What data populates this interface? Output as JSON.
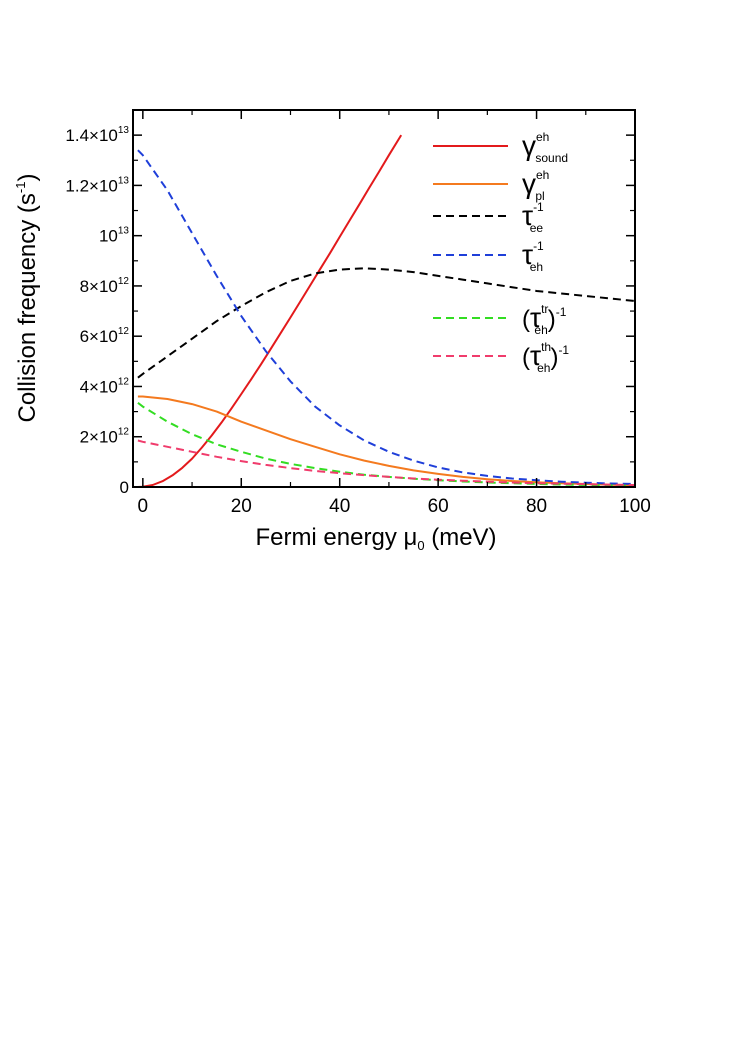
{
  "chart_data": {
    "type": "line",
    "xlabel_main": "Fermi energy μ",
    "xlabel_sub": "0",
    "xlabel_tail": " (meV)",
    "ylabel_main": "Collision frequency (s",
    "ylabel_sup": "-1",
    "ylabel_tail": ")",
    "xlim": [
      -2,
      100
    ],
    "ylim": [
      0,
      15000000000000.0
    ],
    "xticks": [
      0,
      20,
      40,
      60,
      80,
      100
    ],
    "xtick_labels": [
      "0",
      "20",
      "40",
      "60",
      "80",
      "100"
    ],
    "yticks": [
      0,
      2000000000000.0,
      4000000000000.0,
      6000000000000.0,
      8000000000000.0,
      10000000000000.0,
      12000000000000.0,
      14000000000000.0
    ],
    "ytick_labels": [
      {
        "base": "0",
        "exp": ""
      },
      {
        "base": "2×10",
        "exp": "12"
      },
      {
        "base": "4×10",
        "exp": "12"
      },
      {
        "base": "6×10",
        "exp": "12"
      },
      {
        "base": "8×10",
        "exp": "12"
      },
      {
        "base": "10",
        "exp": "13"
      },
      {
        "base": "1.2×10",
        "exp": "13"
      },
      {
        "base": "1.4×10",
        "exp": "13"
      }
    ],
    "series": [
      {
        "name": "gamma_sound",
        "color": "#e31a1c",
        "dash": "solid",
        "label": {
          "pre": "",
          "sym": "γ",
          "sup": "eh",
          "sub": "sound",
          "post": "",
          "post_sup": ""
        },
        "x": [
          -1,
          0,
          2,
          4,
          6,
          8,
          10,
          12,
          14,
          16,
          18,
          20,
          22,
          24,
          26,
          28,
          30,
          32,
          34,
          36,
          38,
          40,
          42,
          44,
          46,
          48,
          50,
          52.5
        ],
        "y": [
          0,
          10000000000.0,
          80000000000.0,
          230000000000.0,
          460000000000.0,
          760000000000.0,
          1130000000000.0,
          1570000000000.0,
          2050000000000.0,
          2570000000000.0,
          3120000000000.0,
          3700000000000.0,
          4280000000000.0,
          4880000000000.0,
          5500000000000.0,
          6120000000000.0,
          6750000000000.0,
          7380000000000.0,
          8020000000000.0,
          8660000000000.0,
          9300000000000.0,
          9950000000000.0,
          10600000000000.0,
          11250000000000.0,
          11900000000000.0,
          12550000000000.0,
          13200000000000.0,
          14000000000000.0
        ]
      },
      {
        "name": "gamma_pl",
        "color": "#f47a1f",
        "dash": "solid",
        "label": {
          "pre": "",
          "sym": "γ",
          "sup": "eh",
          "sub": "pl",
          "post": "",
          "post_sup": ""
        },
        "x": [
          -1,
          0,
          5,
          10,
          15,
          20,
          25,
          30,
          35,
          40,
          45,
          50,
          55,
          60,
          65,
          70,
          75,
          80,
          85,
          90,
          95,
          100
        ],
        "y": [
          3600000000000.0,
          3600000000000.0,
          3500000000000.0,
          3300000000000.0,
          3000000000000.0,
          2600000000000.0,
          2250000000000.0,
          1900000000000.0,
          1600000000000.0,
          1300000000000.0,
          1050000000000.0,
          840000000000.0,
          660000000000.0,
          520000000000.0,
          400000000000.0,
          310000000000.0,
          240000000000.0,
          190000000000.0,
          150000000000.0,
          120000000000.0,
          90000000000.0,
          70000000000.0
        ]
      },
      {
        "name": "tau_ee_inv",
        "color": "#000000",
        "dash": "dashed",
        "label": {
          "pre": "",
          "sym": "τ",
          "sup": "-1",
          "sub": "ee",
          "post": "",
          "post_sup": ""
        },
        "x": [
          -1,
          0,
          5,
          10,
          15,
          20,
          25,
          30,
          35,
          40,
          45,
          50,
          55,
          60,
          65,
          70,
          75,
          80,
          85,
          90,
          95,
          100
        ],
        "y": [
          4350000000000.0,
          4500000000000.0,
          5200000000000.0,
          5900000000000.0,
          6600000000000.0,
          7200000000000.0,
          7750000000000.0,
          8200000000000.0,
          8500000000000.0,
          8650000000000.0,
          8700000000000.0,
          8650000000000.0,
          8550000000000.0,
          8400000000000.0,
          8250000000000.0,
          8100000000000.0,
          7950000000000.0,
          7800000000000.0,
          7700000000000.0,
          7600000000000.0,
          7500000000000.0,
          7400000000000.0
        ]
      },
      {
        "name": "tau_eh_inv",
        "color": "#1f3fd9",
        "dash": "dashed",
        "label": {
          "pre": "",
          "sym": "τ",
          "sup": "-1",
          "sub": "eh",
          "post": "",
          "post_sup": ""
        },
        "x": [
          -1,
          0,
          5,
          10,
          15,
          20,
          25,
          30,
          35,
          40,
          45,
          50,
          55,
          60,
          65,
          70,
          75,
          80,
          85,
          90,
          95,
          100
        ],
        "y": [
          13400000000000.0,
          13200000000000.0,
          11800000000000.0,
          10100000000000.0,
          8400000000000.0,
          6800000000000.0,
          5400000000000.0,
          4200000000000.0,
          3200000000000.0,
          2450000000000.0,
          1850000000000.0,
          1400000000000.0,
          1050000000000.0,
          780000000000.0,
          580000000000.0,
          440000000000.0,
          340000000000.0,
          270000000000.0,
          210000000000.0,
          170000000000.0,
          140000000000.0,
          120000000000.0
        ]
      },
      {
        "name": "tau_eh_tr_inv",
        "color": "#33dd22",
        "dash": "dashed",
        "label": {
          "pre": "(",
          "sym": "τ",
          "sup": "tr",
          "sub": "eh",
          "post": ")",
          "post_sup": "-1"
        },
        "x": [
          -1,
          0,
          5,
          10,
          15,
          20,
          25,
          30,
          35,
          40,
          45,
          50,
          55,
          60,
          65,
          70,
          75,
          80,
          85,
          90,
          95,
          100
        ],
        "y": [
          3350000000000.0,
          3200000000000.0,
          2600000000000.0,
          2100000000000.0,
          1700000000000.0,
          1400000000000.0,
          1130000000000.0,
          920000000000.0,
          750000000000.0,
          610000000000.0,
          490000000000.0,
          400000000000.0,
          330000000000.0,
          270000000000.0,
          220000000000.0,
          180000000000.0,
          150000000000.0,
          120000000000.0,
          100000000000.0,
          80000000000.0,
          65000000000.0,
          50000000000.0
        ]
      },
      {
        "name": "tau_eh_th_inv",
        "color": "#f03c6c",
        "dash": "dashed",
        "label": {
          "pre": "(",
          "sym": "τ",
          "sup": "th",
          "sub": "eh",
          "post": ")",
          "post_sup": "-1"
        },
        "x": [
          -1,
          0,
          5,
          10,
          15,
          20,
          25,
          30,
          35,
          40,
          45,
          50,
          55,
          60,
          65,
          70,
          75,
          80,
          85,
          90,
          95,
          100
        ],
        "y": [
          1850000000000.0,
          1800000000000.0,
          1600000000000.0,
          1400000000000.0,
          1200000000000.0,
          1030000000000.0,
          880000000000.0,
          750000000000.0,
          640000000000.0,
          550000000000.0,
          470000000000.0,
          400000000000.0,
          340000000000.0,
          290000000000.0,
          250000000000.0,
          210000000000.0,
          180000000000.0,
          150000000000.0,
          130000000000.0,
          110000000000.0,
          90000000000.0,
          75000000000.0
        ]
      }
    ],
    "legend_position": "top-right"
  }
}
